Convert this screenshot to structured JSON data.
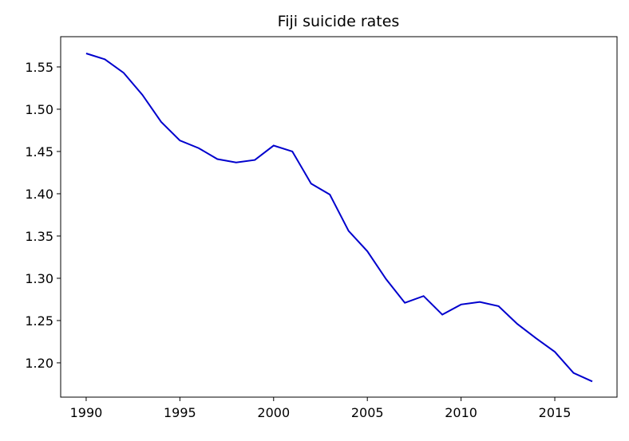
{
  "chart_data": {
    "type": "line",
    "title": "Fiji suicide rates",
    "x": [
      1990,
      1991,
      1992,
      1993,
      1994,
      1995,
      1996,
      1997,
      1998,
      1999,
      2000,
      2001,
      2002,
      2003,
      2004,
      2005,
      2006,
      2007,
      2008,
      2009,
      2010,
      2011,
      2012,
      2013,
      2014,
      2015,
      2016,
      2017
    ],
    "series": [
      {
        "color": "#0000cd",
        "values": [
          1.566,
          1.559,
          1.543,
          1.517,
          1.485,
          1.463,
          1.454,
          1.441,
          1.437,
          1.44,
          1.457,
          1.45,
          1.412,
          1.399,
          1.356,
          1.332,
          1.299,
          1.271,
          1.279,
          1.257,
          1.269,
          1.272,
          1.267,
          1.246,
          1.229,
          1.213,
          1.188,
          1.178
        ]
      }
    ],
    "xlim": [
      1988.64,
      2018.32
    ],
    "ylim": [
      1.1594,
      1.5858
    ],
    "xticks": [
      1990,
      1995,
      2000,
      2005,
      2010,
      2015
    ],
    "yticks": [
      {
        "value": 1.2,
        "label": "1.20"
      },
      {
        "value": 1.25,
        "label": "1.25"
      },
      {
        "value": 1.3,
        "label": "1.30"
      },
      {
        "value": 1.35,
        "label": "1.35"
      },
      {
        "value": 1.4,
        "label": "1.40"
      },
      {
        "value": 1.45,
        "label": "1.45"
      },
      {
        "value": 1.5,
        "label": "1.50"
      },
      {
        "value": 1.55,
        "label": "1.55"
      }
    ]
  }
}
